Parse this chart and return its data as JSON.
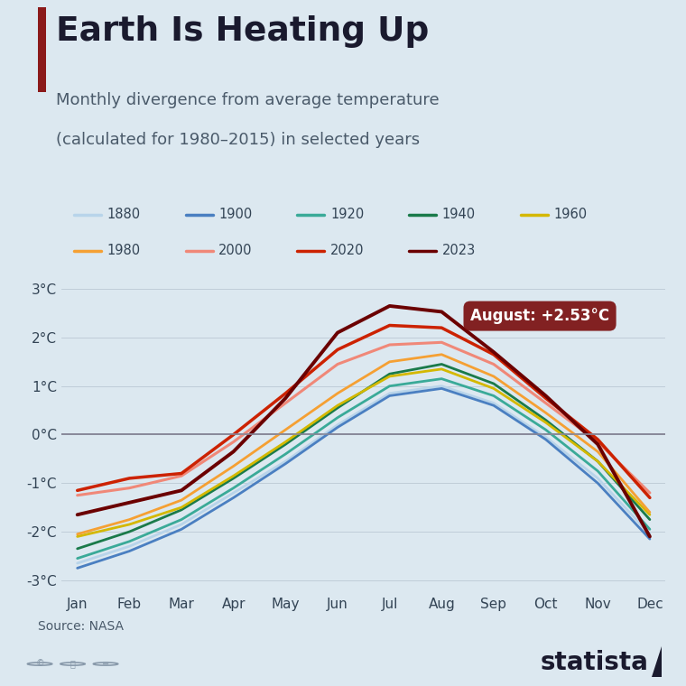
{
  "title": "Earth Is Heating Up",
  "subtitle1": "Monthly divergence from average temperature",
  "subtitle2": "(calculated for 1980–2015) in selected years",
  "source": "Source: NASA",
  "annotation": "August: +2.53°C",
  "background_color": "#dce8f0",
  "title_color": "#1a1a2e",
  "subtitle_color": "#4a5a6a",
  "accent_bar_color": "#8b1a1a",
  "months": [
    "Jan",
    "Feb",
    "Mar",
    "Apr",
    "May",
    "Jun",
    "Jul",
    "Aug",
    "Sep",
    "Oct",
    "Nov",
    "Dec"
  ],
  "series_order": [
    "1880",
    "1900",
    "1920",
    "1940",
    "1960",
    "1980",
    "2000",
    "2020",
    "2023"
  ],
  "series": {
    "1880": {
      "color": "#b8d4ea",
      "linewidth": 2.0,
      "values": [
        -2.65,
        -2.3,
        -1.85,
        -1.2,
        -0.55,
        0.2,
        0.85,
        1.0,
        0.65,
        -0.05,
        -0.9,
        -2.05
      ]
    },
    "1900": {
      "color": "#4a7fc1",
      "linewidth": 2.0,
      "values": [
        -2.75,
        -2.4,
        -1.95,
        -1.3,
        -0.6,
        0.15,
        0.8,
        0.95,
        0.6,
        -0.1,
        -1.0,
        -2.15
      ]
    },
    "1920": {
      "color": "#3aaa98",
      "linewidth": 2.0,
      "values": [
        -2.55,
        -2.2,
        -1.75,
        -1.1,
        -0.4,
        0.35,
        1.0,
        1.15,
        0.8,
        0.1,
        -0.75,
        -1.95
      ]
    },
    "1940": {
      "color": "#1a7a4a",
      "linewidth": 2.0,
      "values": [
        -2.35,
        -2.0,
        -1.55,
        -0.9,
        -0.2,
        0.55,
        1.25,
        1.45,
        1.05,
        0.3,
        -0.55,
        -1.75
      ]
    },
    "1960": {
      "color": "#d4b800",
      "linewidth": 2.0,
      "values": [
        -2.1,
        -1.85,
        -1.5,
        -0.85,
        -0.15,
        0.6,
        1.2,
        1.35,
        0.95,
        0.25,
        -0.55,
        -1.65
      ]
    },
    "1980": {
      "color": "#f5a033",
      "linewidth": 2.0,
      "values": [
        -2.05,
        -1.75,
        -1.35,
        -0.65,
        0.1,
        0.85,
        1.5,
        1.65,
        1.2,
        0.45,
        -0.35,
        -1.6
      ]
    },
    "2000": {
      "color": "#f08878",
      "linewidth": 2.2,
      "values": [
        -1.25,
        -1.1,
        -0.85,
        -0.15,
        0.65,
        1.45,
        1.85,
        1.9,
        1.45,
        0.65,
        -0.15,
        -1.2
      ]
    },
    "2020": {
      "color": "#cc2200",
      "linewidth": 2.5,
      "values": [
        -1.15,
        -0.9,
        -0.8,
        0.0,
        0.85,
        1.75,
        2.25,
        2.2,
        1.65,
        0.75,
        -0.1,
        -1.3
      ]
    },
    "2023": {
      "color": "#6b0000",
      "linewidth": 2.8,
      "values": [
        -1.65,
        -1.4,
        -1.15,
        -0.35,
        0.75,
        2.1,
        2.65,
        2.53,
        1.7,
        0.8,
        -0.2,
        -2.1
      ]
    }
  },
  "ylim": [
    -3.2,
    3.3
  ],
  "yticks": [
    -3,
    -2,
    -1,
    0,
    1,
    2,
    3
  ],
  "ytick_labels": [
    "-3°C",
    "-2°C",
    "-1°C",
    "0°C",
    "1°C",
    "2°C",
    "3°C"
  ],
  "annotation_box_color": "#7a1010",
  "annotation_text_color": "#ffffff",
  "annotation_month_idx": 7,
  "annotation_value": 2.53,
  "legend_row1": [
    "1880",
    "1900",
    "1920",
    "1940",
    "1960"
  ],
  "legend_row2": [
    "1980",
    "2000",
    "2020",
    "2023"
  ]
}
